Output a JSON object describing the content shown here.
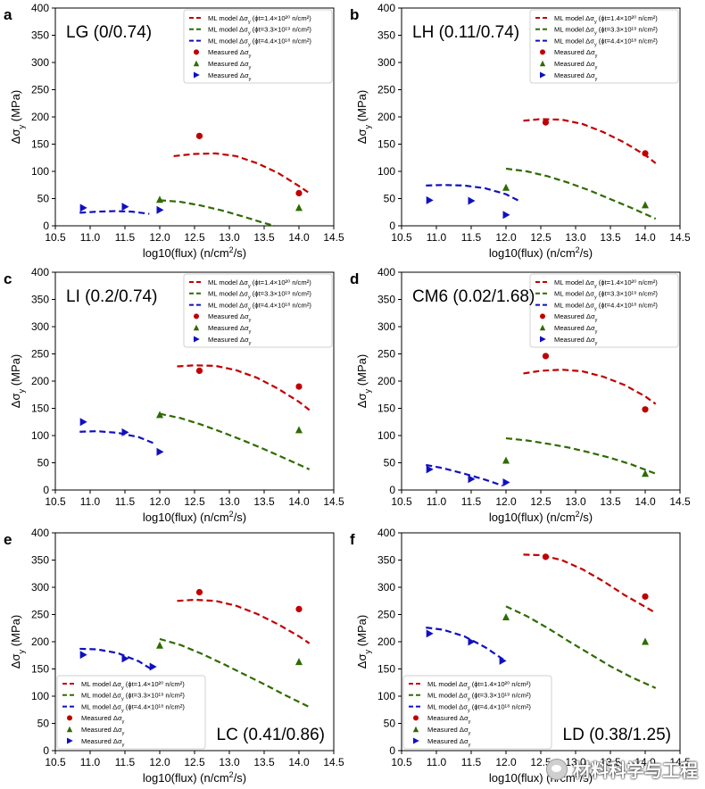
{
  "chart_data": [
    {
      "panel": "a",
      "label": "LG (0/0.74)",
      "type": "line",
      "label_pos": "top-left",
      "legend_pos": "top-right",
      "xlabel": "log10(flux) (n/cm²/s)",
      "ylabel": "Δσy (MPa)",
      "xlim": [
        10.5,
        14.5
      ],
      "ylim": [
        0,
        400
      ],
      "xticks": [
        "10.5",
        "11.0",
        "11.5",
        "12.0",
        "12.5",
        "13.0",
        "13.5",
        "14.0",
        "14.5"
      ],
      "yticks": [
        "0",
        "50",
        "100",
        "150",
        "200",
        "250",
        "300",
        "350",
        "400"
      ],
      "series": [
        {
          "name": "ML model Δσy (ϕt=1.4×10²⁰ n/cm²)",
          "kind": "model",
          "color": "#c00000",
          "x": [
            12.2,
            12.5,
            12.8,
            13.1,
            13.4,
            13.7,
            14.0,
            14.15
          ],
          "y": [
            128,
            132,
            133,
            128,
            115,
            97,
            73,
            60
          ]
        },
        {
          "name": "ML model Δσy (ϕt=3.3×10¹⁹ n/cm²)",
          "kind": "model",
          "color": "#2e6b00",
          "x": [
            12.0,
            12.3,
            12.6,
            12.9,
            13.2,
            13.45,
            13.65
          ],
          "y": [
            47,
            44,
            37,
            28,
            17,
            7,
            0
          ]
        },
        {
          "name": "ML model Δσy (ϕt=4.4×10¹⁸ n/cm²)",
          "kind": "model",
          "color": "#1010c0",
          "x": [
            10.85,
            11.1,
            11.35,
            11.6,
            11.85
          ],
          "y": [
            24,
            26,
            27,
            26,
            22
          ]
        },
        {
          "name": "Measured Δσy",
          "kind": "measured",
          "marker": "circle",
          "color": "#c00000",
          "x": [
            12.57,
            14.0
          ],
          "y": [
            165,
            60
          ]
        },
        {
          "name": "Measured Δσy",
          "kind": "measured",
          "marker": "triangle",
          "color": "#2e6b00",
          "x": [
            12.0,
            14.0
          ],
          "y": [
            48,
            33
          ]
        },
        {
          "name": "Measured Δσy",
          "kind": "measured",
          "marker": "arrow",
          "color": "#1010c0",
          "x": [
            10.9,
            11.5,
            12.0
          ],
          "y": [
            33,
            35,
            29
          ]
        }
      ]
    },
    {
      "panel": "b",
      "label": "LH (0.11/0.74)",
      "type": "line",
      "label_pos": "top-left",
      "legend_pos": "top-right",
      "xlabel": "log10(flux) (n/cm²/s)",
      "ylabel": "Δσy (MPa)",
      "xlim": [
        10.5,
        14.5
      ],
      "ylim": [
        0,
        400
      ],
      "xticks": [
        "10.5",
        "11.0",
        "11.5",
        "12.0",
        "12.5",
        "13.0",
        "13.5",
        "14.0",
        "14.5"
      ],
      "yticks": [
        "0",
        "50",
        "100",
        "150",
        "200",
        "250",
        "300",
        "350",
        "400"
      ],
      "series": [
        {
          "name": "ML model Δσy (ϕt=1.4×10²⁰ n/cm²)",
          "kind": "model",
          "color": "#c00000",
          "x": [
            12.25,
            12.5,
            12.8,
            13.1,
            13.4,
            13.7,
            14.0,
            14.15
          ],
          "y": [
            193,
            196,
            195,
            187,
            172,
            153,
            130,
            115
          ]
        },
        {
          "name": "ML model Δσy (ϕt=3.3×10¹⁹ n/cm²)",
          "kind": "model",
          "color": "#2e6b00",
          "x": [
            12.0,
            12.3,
            12.6,
            12.9,
            13.2,
            13.5,
            13.8,
            14.15
          ],
          "y": [
            105,
            100,
            91,
            79,
            65,
            49,
            33,
            13
          ]
        },
        {
          "name": "ML model Δσy (ϕt=4.4×10¹⁸ n/cm²)",
          "kind": "model",
          "color": "#1010c0",
          "x": [
            10.85,
            11.1,
            11.4,
            11.7,
            12.0,
            12.2
          ],
          "y": [
            74,
            75,
            74,
            69,
            58,
            45
          ]
        },
        {
          "name": "Measured Δσy",
          "kind": "measured",
          "marker": "circle",
          "color": "#c00000",
          "x": [
            12.57,
            14.0
          ],
          "y": [
            190,
            133
          ]
        },
        {
          "name": "Measured Δσy",
          "kind": "measured",
          "marker": "triangle",
          "color": "#2e6b00",
          "x": [
            12.0,
            14.0
          ],
          "y": [
            70,
            38
          ]
        },
        {
          "name": "Measured Δσy",
          "kind": "measured",
          "marker": "arrow",
          "color": "#1010c0",
          "x": [
            10.9,
            11.5,
            12.0
          ],
          "y": [
            47,
            46,
            20
          ]
        }
      ]
    },
    {
      "panel": "c",
      "label": "LI (0.2/0.74)",
      "type": "line",
      "label_pos": "top-left",
      "legend_pos": "top-right",
      "xlabel": "log10(flux) (n/cm²/s)",
      "ylabel": "Δσy (MPa)",
      "xlim": [
        10.5,
        14.5
      ],
      "ylim": [
        0,
        400
      ],
      "xticks": [
        "10.5",
        "11.0",
        "11.5",
        "12.0",
        "12.5",
        "13.0",
        "13.5",
        "14.0",
        "14.5"
      ],
      "yticks": [
        "0",
        "50",
        "100",
        "150",
        "200",
        "250",
        "300",
        "350",
        "400"
      ],
      "series": [
        {
          "name": "ML model Δσy (ϕt=1.4×10²⁰ n/cm²)",
          "kind": "model",
          "color": "#c00000",
          "x": [
            12.25,
            12.5,
            12.8,
            13.1,
            13.4,
            13.7,
            14.0,
            14.15
          ],
          "y": [
            227,
            229,
            228,
            220,
            206,
            186,
            162,
            147
          ]
        },
        {
          "name": "ML model Δσy (ϕt=3.3×10¹⁹ n/cm²)",
          "kind": "model",
          "color": "#2e6b00",
          "x": [
            12.0,
            12.3,
            12.6,
            12.9,
            13.2,
            13.5,
            13.8,
            14.15
          ],
          "y": [
            140,
            132,
            120,
            106,
            91,
            75,
            58,
            38
          ]
        },
        {
          "name": "ML model Δσy (ϕt=4.4×10¹⁸ n/cm²)",
          "kind": "model",
          "color": "#1010c0",
          "x": [
            10.85,
            11.1,
            11.4,
            11.7,
            11.95
          ],
          "y": [
            107,
            108,
            105,
            97,
            84
          ]
        },
        {
          "name": "Measured Δσy",
          "kind": "measured",
          "marker": "circle",
          "color": "#c00000",
          "x": [
            12.57,
            14.0
          ],
          "y": [
            219,
            190
          ]
        },
        {
          "name": "Measured Δσy",
          "kind": "measured",
          "marker": "triangle",
          "color": "#2e6b00",
          "x": [
            12.0,
            14.0
          ],
          "y": [
            138,
            110
          ]
        },
        {
          "name": "Measured Δσy",
          "kind": "measured",
          "marker": "arrow",
          "color": "#1010c0",
          "x": [
            10.9,
            11.5,
            12.0
          ],
          "y": [
            125,
            106,
            70
          ]
        }
      ]
    },
    {
      "panel": "d",
      "label": "CM6 (0.02/1.68)",
      "type": "line",
      "label_pos": "top-left",
      "legend_pos": "top-right",
      "xlabel": "log10(flux) (n/cm²/s)",
      "ylabel": "Δσy (MPa)",
      "xlim": [
        10.5,
        14.5
      ],
      "ylim": [
        0,
        400
      ],
      "xticks": [
        "10.5",
        "11.0",
        "11.5",
        "12.0",
        "12.5",
        "13.0",
        "13.5",
        "14.0",
        "14.5"
      ],
      "yticks": [
        "0",
        "50",
        "100",
        "150",
        "200",
        "250",
        "300",
        "350",
        "400"
      ],
      "series": [
        {
          "name": "ML model Δσy (ϕt=1.4×10²⁰ n/cm²)",
          "kind": "model",
          "color": "#c00000",
          "x": [
            12.25,
            12.5,
            12.8,
            13.1,
            13.4,
            13.7,
            14.0,
            14.15
          ],
          "y": [
            214,
            219,
            221,
            218,
            208,
            193,
            172,
            158
          ]
        },
        {
          "name": "ML model Δσy (ϕt=3.3×10¹⁹ n/cm²)",
          "kind": "model",
          "color": "#2e6b00",
          "x": [
            12.0,
            12.3,
            12.6,
            12.9,
            13.2,
            13.5,
            13.8,
            14.15
          ],
          "y": [
            95,
            91,
            85,
            78,
            69,
            59,
            47,
            30
          ]
        },
        {
          "name": "ML model Δσy (ϕt=4.4×10¹⁸ n/cm²)",
          "kind": "model",
          "color": "#1010c0",
          "x": [
            10.85,
            11.1,
            11.4,
            11.7,
            11.95
          ],
          "y": [
            46,
            40,
            30,
            19,
            8
          ]
        },
        {
          "name": "Measured Δσy",
          "kind": "measured",
          "marker": "circle",
          "color": "#c00000",
          "x": [
            12.57,
            14.0
          ],
          "y": [
            246,
            148
          ]
        },
        {
          "name": "Measured Δσy",
          "kind": "measured",
          "marker": "triangle",
          "color": "#2e6b00",
          "x": [
            12.0,
            14.0
          ],
          "y": [
            54,
            30
          ]
        },
        {
          "name": "Measured Δσy",
          "kind": "measured",
          "marker": "arrow",
          "color": "#1010c0",
          "x": [
            10.9,
            11.5,
            12.0
          ],
          "y": [
            38,
            20,
            14
          ]
        }
      ]
    },
    {
      "panel": "e",
      "label": "LC (0.41/0.86)",
      "type": "line",
      "label_pos": "bottom-right",
      "legend_pos": "bottom-left",
      "xlabel": "log10(flux) (n/cm²/s)",
      "ylabel": "Δσy (MPa)",
      "xlim": [
        10.5,
        14.5
      ],
      "ylim": [
        0,
        400
      ],
      "xticks": [
        "10.5",
        "11.0",
        "11.5",
        "12.0",
        "12.5",
        "13.0",
        "13.5",
        "14.0",
        "14.5"
      ],
      "yticks": [
        "0",
        "50",
        "100",
        "150",
        "200",
        "250",
        "300",
        "350",
        "400"
      ],
      "series": [
        {
          "name": "ML model Δσy (ϕt=1.4×10²⁰ n/cm²)",
          "kind": "model",
          "color": "#c00000",
          "x": [
            12.25,
            12.5,
            12.8,
            13.1,
            13.4,
            13.7,
            14.0,
            14.15
          ],
          "y": [
            275,
            277,
            275,
            266,
            251,
            232,
            210,
            197
          ]
        },
        {
          "name": "ML model Δσy (ϕt=3.3×10¹⁹ n/cm²)",
          "kind": "model",
          "color": "#2e6b00",
          "x": [
            12.0,
            12.3,
            12.6,
            12.9,
            13.2,
            13.5,
            13.8,
            14.15
          ],
          "y": [
            205,
            194,
            178,
            160,
            141,
            122,
            102,
            80
          ]
        },
        {
          "name": "ML model Δσy (ϕt=4.4×10¹⁸ n/cm²)",
          "kind": "model",
          "color": "#1010c0",
          "x": [
            10.85,
            11.1,
            11.4,
            11.7,
            11.9
          ],
          "y": [
            187,
            186,
            179,
            164,
            148
          ]
        },
        {
          "name": "Measured Δσy",
          "kind": "measured",
          "marker": "circle",
          "color": "#c00000",
          "x": [
            12.57,
            14.0
          ],
          "y": [
            291,
            260
          ]
        },
        {
          "name": "Measured Δσy",
          "kind": "measured",
          "marker": "triangle",
          "color": "#2e6b00",
          "x": [
            12.0,
            14.0
          ],
          "y": [
            193,
            163
          ]
        },
        {
          "name": "Measured Δσy",
          "kind": "measured",
          "marker": "arrow",
          "color": "#1010c0",
          "x": [
            10.9,
            11.5,
            11.9
          ],
          "y": [
            176,
            169,
            154
          ]
        }
      ]
    },
    {
      "panel": "f",
      "label": "LD (0.38/1.25)",
      "type": "line",
      "label_pos": "bottom-right",
      "legend_pos": "bottom-left",
      "xlabel": "log10(flux) (n/cm²/s)",
      "ylabel": "Δσy (MPa)",
      "xlim": [
        10.5,
        14.5
      ],
      "ylim": [
        0,
        400
      ],
      "xticks": [
        "10.5",
        "11.0",
        "11.5",
        "12.0",
        "12.5",
        "13.0",
        "13.5",
        "14.0",
        "14.5"
      ],
      "yticks": [
        "0",
        "50",
        "100",
        "150",
        "200",
        "250",
        "300",
        "350",
        "400"
      ],
      "series": [
        {
          "name": "ML model Δσy (ϕt=1.4×10²⁰ n/cm²)",
          "kind": "model",
          "color": "#c00000",
          "x": [
            12.25,
            12.5,
            12.8,
            13.1,
            13.4,
            13.7,
            14.0,
            14.15
          ],
          "y": [
            360,
            359,
            350,
            333,
            311,
            286,
            264,
            253
          ]
        },
        {
          "name": "ML model Δσy (ϕt=3.3×10¹⁹ n/cm²)",
          "kind": "model",
          "color": "#2e6b00",
          "x": [
            12.0,
            12.3,
            12.6,
            12.9,
            13.2,
            13.5,
            13.8,
            14.15
          ],
          "y": [
            265,
            247,
            225,
            201,
            178,
            155,
            135,
            115
          ]
        },
        {
          "name": "ML model Δσy (ϕt=4.4×10¹⁸ n/cm²)",
          "kind": "model",
          "color": "#1010c0",
          "x": [
            10.85,
            11.1,
            11.4,
            11.7,
            12.0
          ],
          "y": [
            226,
            222,
            210,
            190,
            164
          ]
        },
        {
          "name": "Measured Δσy",
          "kind": "measured",
          "marker": "circle",
          "color": "#c00000",
          "x": [
            12.57,
            14.0
          ],
          "y": [
            356,
            283
          ]
        },
        {
          "name": "Measured Δσy",
          "kind": "measured",
          "marker": "triangle",
          "color": "#2e6b00",
          "x": [
            12.0,
            14.0
          ],
          "y": [
            245,
            200
          ]
        },
        {
          "name": "Measured Δσy",
          "kind": "measured",
          "marker": "arrow",
          "color": "#1010c0",
          "x": [
            10.9,
            11.5,
            11.95
          ],
          "y": [
            215,
            200,
            165
          ]
        }
      ]
    }
  ],
  "watermark": {
    "text": "材料科学与工程"
  }
}
